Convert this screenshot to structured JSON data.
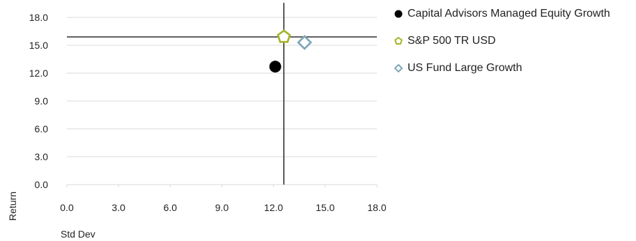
{
  "chart_data": {
    "type": "scatter",
    "xlabel": "Std Dev",
    "ylabel": "Return",
    "xlim": [
      0,
      18
    ],
    "ylim": [
      0,
      18
    ],
    "x_ticks": [
      "0.0",
      "3.0",
      "6.0",
      "9.0",
      "12.0",
      "15.0",
      "18.0"
    ],
    "y_ticks": [
      "0.0",
      "3.0",
      "6.0",
      "9.0",
      "12.0",
      "15.0",
      "18.0"
    ],
    "grid": "horizontal",
    "legend_position": "right",
    "reference_lines": {
      "x": 12.6,
      "y": 15.9
    },
    "series": [
      {
        "name": "Capital Advisors Managed Equity Growth",
        "marker": "circle",
        "color": "#000000",
        "x": 12.1,
        "y": 12.7
      },
      {
        "name": "S&P 500 TR USD",
        "marker": "pentagon",
        "color": "#a7b32a",
        "x": 12.6,
        "y": 15.9
      },
      {
        "name": "US Fund Large Growth",
        "marker": "diamond",
        "color": "#7fa6b8",
        "x": 13.8,
        "y": 15.3
      }
    ]
  }
}
